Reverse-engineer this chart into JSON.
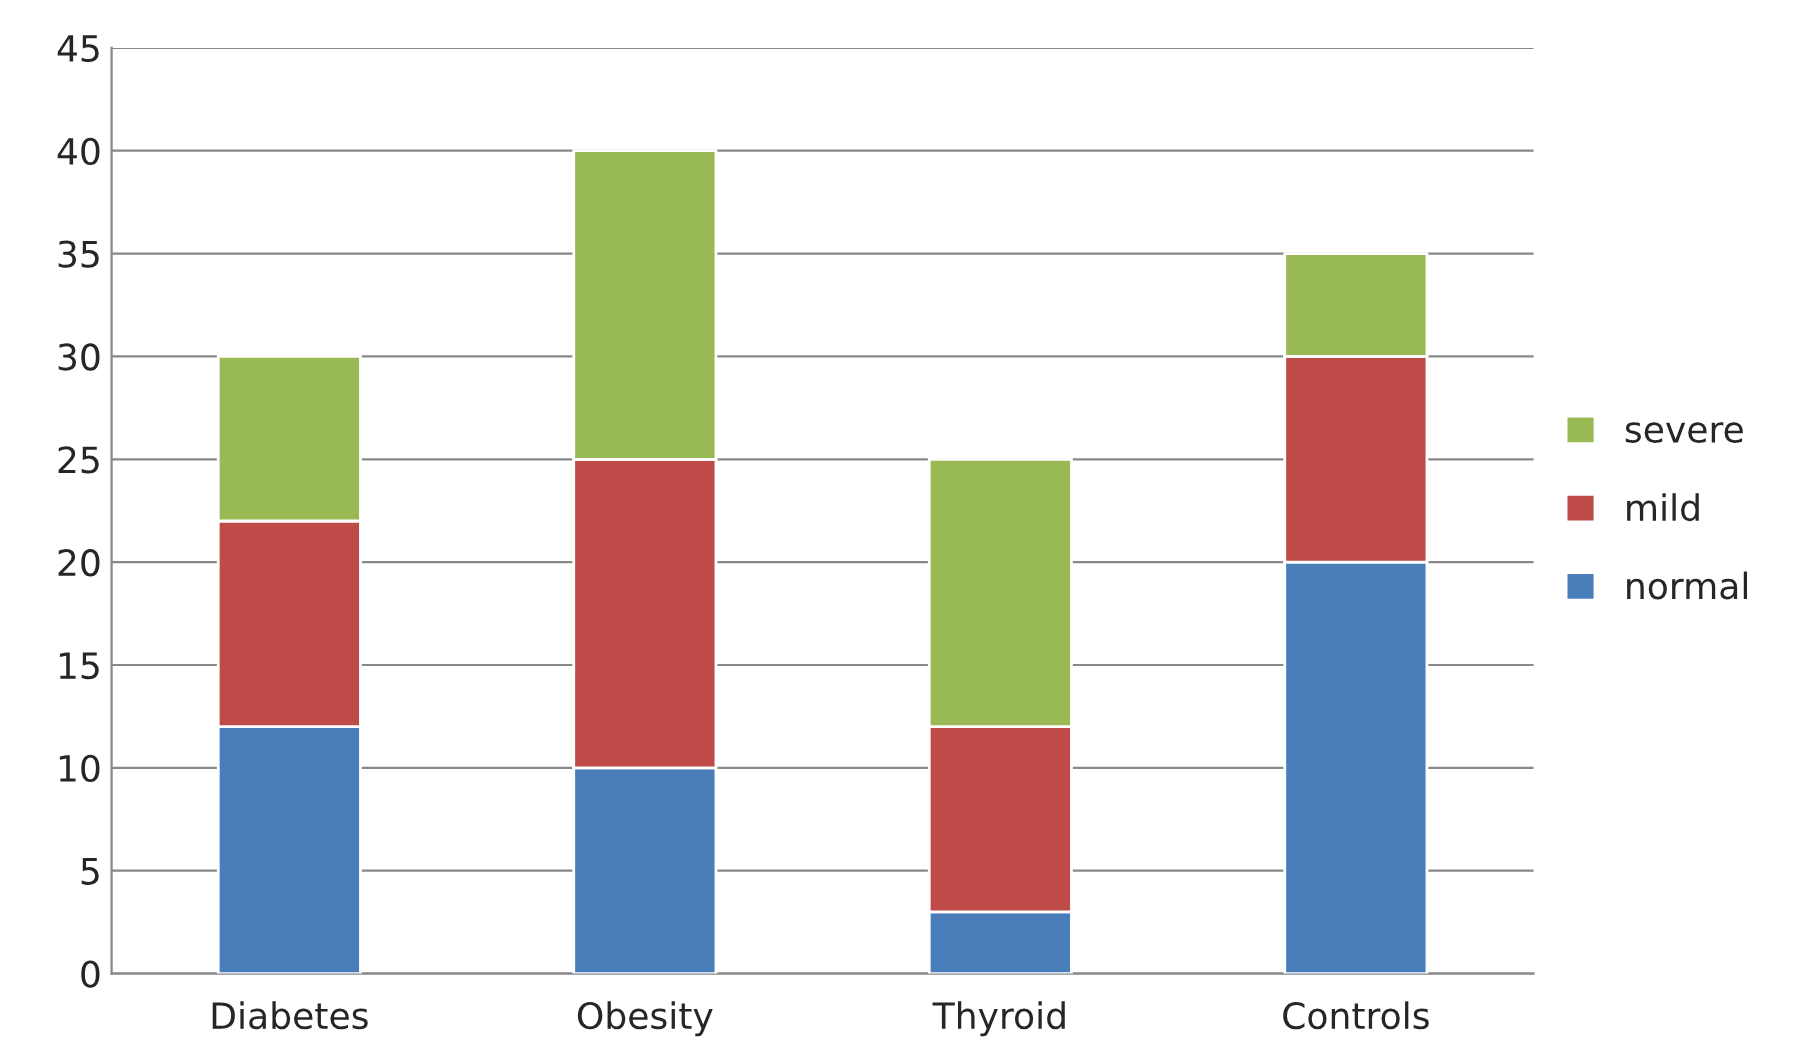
{
  "chart_data": {
    "type": "bar",
    "stacked": true,
    "categories": [
      "Diabetes",
      "Obesity",
      "Thyroid",
      "Controls"
    ],
    "series": [
      {
        "name": "normal",
        "color": "#4a7ebb",
        "values": [
          12,
          10,
          3,
          20
        ]
      },
      {
        "name": "mild",
        "color": "#be4b48",
        "values": [
          10,
          15,
          9,
          10
        ]
      },
      {
        "name": "severe",
        "color": "#98b954",
        "values": [
          8,
          15,
          13,
          5
        ]
      }
    ],
    "ylim": [
      0,
      45
    ],
    "yticks": [
      0,
      5,
      10,
      15,
      20,
      25,
      30,
      35,
      40,
      45
    ],
    "grid": "y",
    "legend": "right"
  }
}
